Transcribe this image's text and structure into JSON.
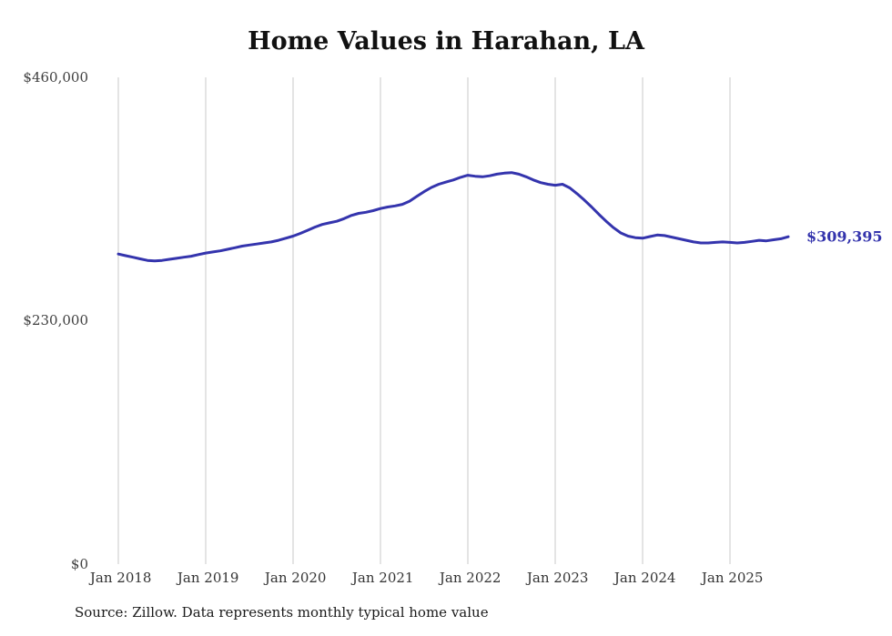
{
  "page": {
    "title": "Home Values in Harahan, LA",
    "current_value_label": "$309,395",
    "source_note": "Source: Zillow. Data represents monthly typical home value"
  },
  "colors": {
    "line": "#3434ad",
    "grid": "#c9c9c9",
    "axis_text": "#3f3f3f"
  },
  "chart_data": {
    "type": "line",
    "title": "Home Values in Harahan, LA",
    "xlabel": "",
    "ylabel": "",
    "ylim": [
      0,
      460000
    ],
    "y_tick_labels": [
      "$0",
      "$230,000",
      "$460,000"
    ],
    "x_tick_labels": [
      "Jan 2018",
      "Jan 2019",
      "Jan 2020",
      "Jan 2021",
      "Jan 2022",
      "Jan 2023",
      "Jan 2024",
      "Jan 2025"
    ],
    "grid": "vertical-only",
    "legend": false,
    "end_label": "$309,395",
    "series": [
      {
        "name": "Monthly typical home value",
        "x": [
          "2018-01",
          "2018-02",
          "2018-03",
          "2018-04",
          "2018-05",
          "2018-06",
          "2018-07",
          "2018-08",
          "2018-09",
          "2018-10",
          "2018-11",
          "2018-12",
          "2019-01",
          "2019-02",
          "2019-03",
          "2019-04",
          "2019-05",
          "2019-06",
          "2019-07",
          "2019-08",
          "2019-09",
          "2019-10",
          "2019-11",
          "2019-12",
          "2020-01",
          "2020-02",
          "2020-03",
          "2020-04",
          "2020-05",
          "2020-06",
          "2020-07",
          "2020-08",
          "2020-09",
          "2020-10",
          "2020-11",
          "2020-12",
          "2021-01",
          "2021-02",
          "2021-03",
          "2021-04",
          "2021-05",
          "2021-06",
          "2021-07",
          "2021-08",
          "2021-09",
          "2021-10",
          "2021-11",
          "2021-12",
          "2022-01",
          "2022-02",
          "2022-03",
          "2022-04",
          "2022-05",
          "2022-06",
          "2022-07",
          "2022-08",
          "2022-09",
          "2022-10",
          "2022-11",
          "2022-12",
          "2023-01",
          "2023-02",
          "2023-03",
          "2023-04",
          "2023-05",
          "2023-06",
          "2023-07",
          "2023-08",
          "2023-09",
          "2023-10",
          "2023-11",
          "2023-12",
          "2024-01",
          "2024-02",
          "2024-03",
          "2024-04",
          "2024-05",
          "2024-06",
          "2024-07",
          "2024-08",
          "2024-09",
          "2024-10",
          "2024-11",
          "2024-12",
          "2025-01",
          "2025-02",
          "2025-03",
          "2025-04",
          "2025-05",
          "2025-06",
          "2025-07",
          "2025-08",
          "2025-09"
        ],
        "values": [
          293000,
          291500,
          290000,
          288500,
          287000,
          286500,
          287000,
          288000,
          289000,
          290000,
          291000,
          292500,
          294000,
          295000,
          296000,
          297500,
          299000,
          300500,
          301500,
          302500,
          303500,
          304500,
          306000,
          308000,
          310000,
          312500,
          315500,
          318500,
          321000,
          322500,
          324000,
          326500,
          329500,
          331500,
          332500,
          334000,
          336000,
          337500,
          338500,
          340000,
          343000,
          347500,
          352000,
          356000,
          359000,
          361000,
          363000,
          365500,
          367500,
          366500,
          366000,
          367000,
          368500,
          369500,
          370000,
          368500,
          366000,
          363000,
          360500,
          359000,
          358000,
          359000,
          355500,
          350000,
          344000,
          337500,
          330500,
          324000,
          318000,
          313000,
          310000,
          308500,
          308000,
          309500,
          311000,
          310500,
          309000,
          307500,
          306000,
          304500,
          303500,
          303500,
          304000,
          304500,
          304000,
          303500,
          304000,
          305000,
          306000,
          305500,
          306500,
          307500,
          309395
        ]
      }
    ]
  }
}
